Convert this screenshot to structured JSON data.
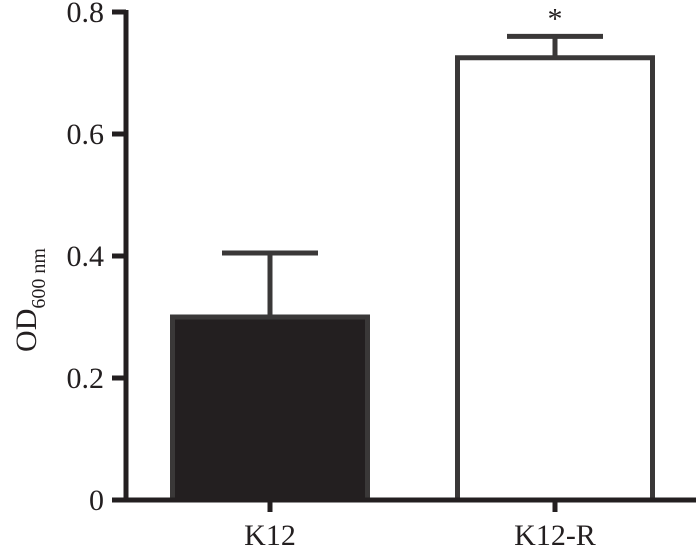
{
  "chart_data": {
    "type": "bar",
    "title": "",
    "xlabel": "",
    "ylabel": "OD",
    "ylabel_subscript": "600 nm",
    "categories": [
      "K12",
      "K12-R"
    ],
    "values": [
      0.3,
      0.725
    ],
    "errors": [
      0.105,
      0.035
    ],
    "bar_fill": [
      "#231f20",
      "#ffffff"
    ],
    "bar_stroke": "#3a3838",
    "ylim": [
      0,
      0.8
    ],
    "yticks": [
      0,
      0.2,
      0.4,
      0.6,
      0.8
    ],
    "ytick_labels": [
      "0",
      "0.2",
      "0.4",
      "0.6",
      "0.8"
    ],
    "annotations": [
      {
        "category": "K12-R",
        "text": "*"
      }
    ],
    "grid": false,
    "legend": "none"
  }
}
